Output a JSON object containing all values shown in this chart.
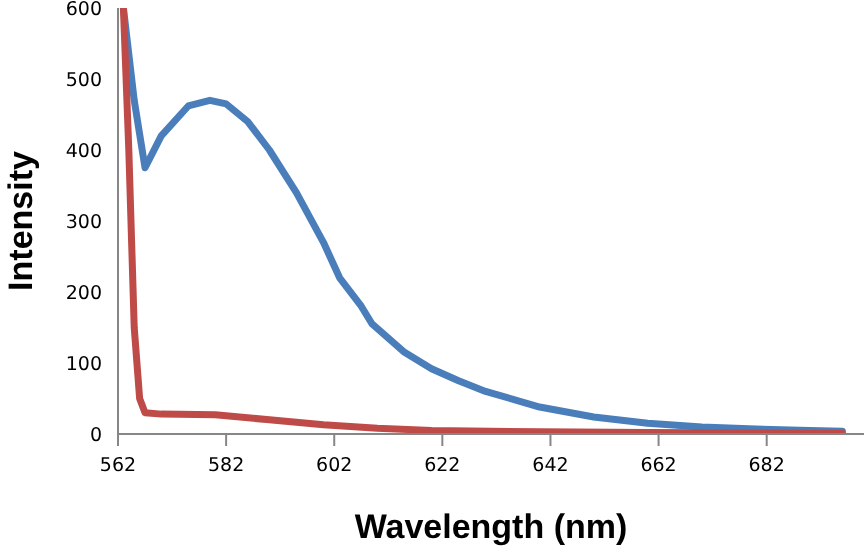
{
  "chart_data": {
    "type": "line",
    "xlabel": "Wavelength (nm)",
    "ylabel": "Intensity",
    "xlim": [
      562,
      700
    ],
    "xticks": [
      562,
      582,
      602,
      622,
      642,
      662,
      682
    ],
    "ylim": [
      0,
      600
    ],
    "yticks": [
      0,
      100,
      200,
      300,
      400,
      500,
      600
    ],
    "marker": "none",
    "line_style": "solid",
    "series": [
      {
        "color": "#4a7ebb",
        "x": [
          563,
          565,
          567,
          570,
          575,
          579,
          582,
          586,
          590,
          595,
          600,
          603,
          607,
          609,
          612,
          615,
          620,
          625,
          630,
          640,
          650,
          660,
          670,
          680,
          690,
          696
        ],
        "values": [
          600,
          470,
          375,
          420,
          462,
          470,
          465,
          440,
          400,
          340,
          270,
          220,
          180,
          155,
          135,
          115,
          92,
          75,
          60,
          38,
          24,
          15,
          10,
          7,
          5,
          4
        ]
      },
      {
        "color": "#be4b48",
        "x": [
          563,
          564,
          565,
          566,
          567,
          570,
          580,
          590,
          600,
          610,
          620,
          640,
          660,
          696
        ],
        "values": [
          600,
          400,
          150,
          50,
          30,
          28,
          27,
          20,
          13,
          8,
          5,
          3,
          2,
          1
        ]
      }
    ]
  }
}
